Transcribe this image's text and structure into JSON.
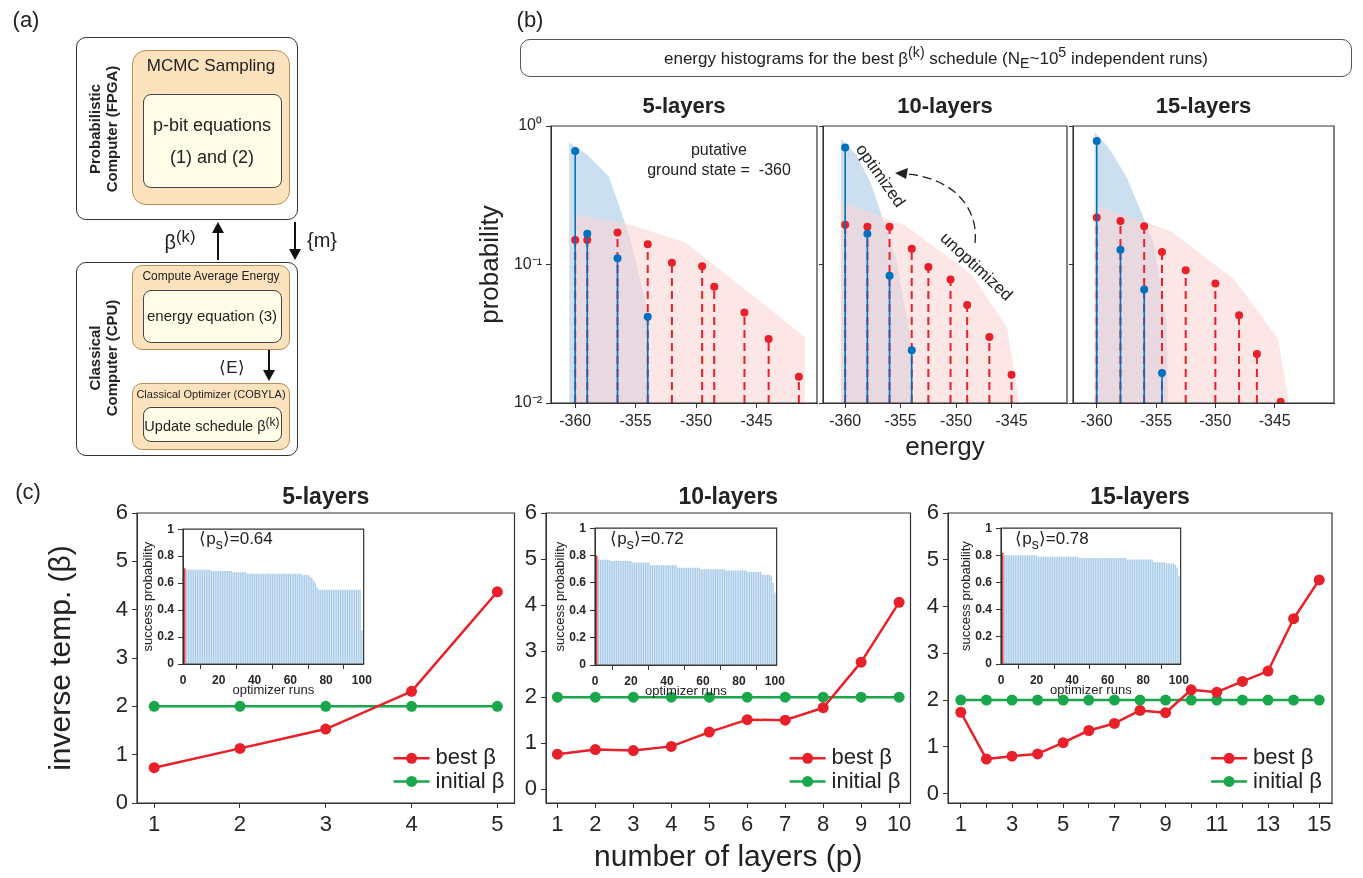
{
  "chart_data": [
    {
      "type": "other",
      "annotations": [
        "(a)",
        "Probabilistic\nComputer (FPGA)",
        "MCMC Sampling",
        "p-bit equations\n(1) and (2)",
        "β$^{(k)}$",
        "{m}",
        "Classical\nComputer (CPU)",
        "Compute Average Energy",
        "energy equation (3)",
        "⟨E⟩",
        "Classical Optimizer (COBYLA)",
        "Update schedule β$^{(k)}$"
      ]
    },
    {
      "type": "lollipop",
      "title": "5-layers",
      "ylabel": "probability",
      "annotations": [
        "(b)",
        "energy histograms for the best β$^{(k)}$ schedule (N$_{E}$~10$^{5}$ independent runs)",
        "putative\nground state =  -360"
      ],
      "log": true,
      "xlim": [
        -362,
        -340
      ],
      "xticks": [
        -360,
        -355,
        -350,
        -345
      ],
      "ylim": [
        0.01,
        1
      ],
      "yticks": [
        {
          "value": 1,
          "label": "10⁰"
        },
        {
          "value": 0.1,
          "label": "10⁻¹"
        },
        {
          "value": 0.01,
          "label": "10⁻²"
        }
      ],
      "series": [
        {
          "type": "area",
          "color": "#fbd5d5",
          "x": [
            -360.2,
            -356,
            -350.9,
            -346.3,
            -341,
            -341
          ],
          "values": [
            0.23,
            0.2,
            0.145,
            0.07,
            0.03,
            0.01
          ]
        },
        {
          "type": "area",
          "color": "#a9c9e8",
          "x": [
            -360.5,
            -359,
            -357.2,
            -355.5,
            -354.1,
            -353.8
          ],
          "values": [
            0.76,
            0.62,
            0.43,
            0.16,
            0.05,
            0.01
          ]
        },
        {
          "color": "#0072bd",
          "line_style": "solid",
          "marker": "circle",
          "x": [
            -360,
            -359,
            -356.5,
            -354
          ],
          "values": [
            0.66,
            0.167,
            0.111,
            0.042
          ]
        },
        {
          "color": "#e8202a",
          "line_style": "dashed",
          "marker": "circle",
          "x": [
            -360,
            -359,
            -356.5,
            -354,
            -352,
            -349.5,
            -348.5,
            -346,
            -344,
            -341.5
          ],
          "values": [
            0.15,
            0.15,
            0.17,
            0.14,
            0.103,
            0.097,
            0.069,
            0.045,
            0.029,
            0.0155
          ]
        }
      ]
    },
    {
      "type": "lollipop",
      "title": "10-layers",
      "xlabel": "energy",
      "annotations": [
        "optimized",
        "unoptimized"
      ],
      "log": true,
      "tick_labels": "x",
      "xlim": [
        -362,
        -340
      ],
      "xticks": [
        -360,
        -355,
        -350,
        -345
      ],
      "ylim": [
        0.01,
        1
      ],
      "yticks": [
        {
          "value": 1,
          "label": null
        },
        {
          "value": 0.1,
          "label": null
        },
        {
          "value": 0.01,
          "label": null
        }
      ],
      "series": [
        {
          "type": "area",
          "color": "#fbd5d5",
          "x": [
            -360.4,
            -354.5,
            -348.6,
            -345.4,
            -344.3
          ],
          "values": [
            0.285,
            0.19,
            0.085,
            0.035,
            0.01
          ]
        },
        {
          "type": "area",
          "color": "#a9c9e8",
          "x": [
            -360.4,
            -359,
            -357.7,
            -355.4,
            -354.1,
            -354
          ],
          "values": [
            0.81,
            0.62,
            0.39,
            0.11,
            0.029,
            0.01
          ]
        },
        {
          "color": "#0072bd",
          "line_style": "solid",
          "marker": "circle",
          "x": [
            -360,
            -358,
            -356,
            -354
          ],
          "values": [
            0.7,
            0.167,
            0.083,
            0.024
          ]
        },
        {
          "color": "#e8202a",
          "line_style": "dashed",
          "marker": "circle",
          "x": [
            -360,
            -358,
            -356,
            -354,
            -352.5,
            -350.5,
            -349,
            -347,
            -345
          ],
          "values": [
            0.194,
            0.187,
            0.187,
            0.13,
            0.096,
            0.078,
            0.051,
            0.03,
            0.016
          ]
        }
      ]
    },
    {
      "type": "lollipop",
      "title": "15-layers",
      "log": true,
      "tick_labels": "x",
      "xlim": [
        -362,
        -340
      ],
      "xticks": [
        -360,
        -355,
        -350,
        -345
      ],
      "ylim": [
        0.01,
        1
      ],
      "yticks": [
        {
          "value": 1,
          "label": null
        },
        {
          "value": 0.1,
          "label": null
        },
        {
          "value": 0.01,
          "label": null
        }
      ],
      "series": [
        {
          "type": "area",
          "color": "#fbd5d5",
          "x": [
            -360.2,
            -353.8,
            -348.4,
            -344.7,
            -343.8
          ],
          "values": [
            0.27,
            0.175,
            0.078,
            0.029,
            0.01
          ]
        },
        {
          "type": "area",
          "color": "#a9c9e8",
          "x": [
            -360.2,
            -359,
            -357.5,
            -355.2,
            -354.1,
            -354
          ],
          "values": [
            0.91,
            0.7,
            0.43,
            0.146,
            0.038,
            0.01
          ]
        },
        {
          "color": "#0072bd",
          "line_style": "solid",
          "marker": "circle",
          "x": [
            -360,
            -358,
            -356,
            -354.5
          ],
          "values": [
            0.78,
            0.128,
            0.066,
            0.0165
          ]
        },
        {
          "color": "#e8202a",
          "line_style": "dashed",
          "marker": "circle",
          "x": [
            -360,
            -358,
            -356,
            -354.5,
            -352.5,
            -350,
            -348,
            -346.5,
            -344.5
          ],
          "values": [
            0.218,
            0.206,
            0.189,
            0.123,
            0.091,
            0.073,
            0.043,
            0.0226,
            0.0102
          ]
        }
      ]
    },
    {
      "type": "line",
      "title": "5-layers",
      "ylabel": "inverse temp. (β)",
      "annotations": [
        "(c)"
      ],
      "marker": "circle",
      "legend": "bottom right",
      "x": [
        1,
        2,
        3,
        4,
        5
      ],
      "xlim": [
        0.8,
        5.2
      ],
      "xticks": [
        1,
        2,
        3,
        4,
        5
      ],
      "ylim": [
        0,
        6
      ],
      "yticks": [
        0,
        1,
        2,
        3,
        4,
        5,
        6
      ],
      "series": [
        {
          "name": "best β",
          "color": "#e8202a",
          "values": [
            0.73,
            1.13,
            1.53,
            2.31,
            4.37
          ]
        },
        {
          "name": "initial β",
          "color": "#1aa64a",
          "values": [
            2,
            2,
            2,
            2,
            2
          ]
        }
      ]
    },
    {
      "type": "bar",
      "xlabel": "optimizer runs",
      "ylabel": "success probability",
      "annotations": [
        "⟨p$_{s}$⟩=0.64"
      ],
      "xlim": [
        0,
        101
      ],
      "xticks": [
        0,
        20,
        40,
        60,
        80,
        100
      ],
      "ylim": [
        0,
        1
      ],
      "yticks": [
        0,
        0.2,
        0.4,
        0.6,
        0.8,
        1
      ],
      "series": [
        {
          "color": "#e8202a",
          "x": [
            1
          ],
          "values": [
            0.71
          ]
        },
        {
          "color": "#a7cbe9",
          "x": [
            2,
            3,
            4,
            5,
            6,
            7,
            8,
            9,
            10,
            11,
            12,
            13,
            14,
            15,
            16,
            17,
            18,
            19,
            20,
            21,
            22,
            23,
            24,
            25,
            26,
            27,
            28,
            29,
            30,
            31,
            32,
            33,
            34,
            35,
            36,
            37,
            38,
            39,
            40,
            41,
            42,
            43,
            44,
            45,
            46,
            47,
            48,
            49,
            50,
            51,
            52,
            53,
            54,
            55,
            56,
            57,
            58,
            59,
            60,
            61,
            62,
            63,
            64,
            65,
            66,
            67,
            68,
            69,
            70,
            71,
            72,
            73,
            74,
            75,
            76,
            77,
            78,
            79,
            80,
            81,
            82,
            83,
            84,
            85,
            86,
            87,
            88,
            89,
            90,
            91,
            92,
            93,
            94,
            95,
            96,
            97,
            98,
            99,
            100
          ],
          "values": [
            0.7,
            0.7,
            0.7,
            0.7,
            0.7,
            0.7,
            0.7,
            0.7,
            0.7,
            0.7,
            0.7,
            0.7,
            0.7,
            0.7,
            0.69,
            0.69,
            0.69,
            0.69,
            0.69,
            0.69,
            0.69,
            0.69,
            0.69,
            0.69,
            0.69,
            0.69,
            0.68,
            0.68,
            0.68,
            0.68,
            0.68,
            0.68,
            0.68,
            0.68,
            0.67,
            0.67,
            0.67,
            0.67,
            0.67,
            0.67,
            0.67,
            0.67,
            0.67,
            0.67,
            0.67,
            0.67,
            0.67,
            0.67,
            0.67,
            0.67,
            0.67,
            0.67,
            0.67,
            0.67,
            0.67,
            0.67,
            0.67,
            0.67,
            0.67,
            0.67,
            0.67,
            0.67,
            0.67,
            0.67,
            0.67,
            0.66,
            0.66,
            0.66,
            0.66,
            0.65,
            0.64,
            0.62,
            0.6,
            0.57,
            0.55,
            0.55,
            0.55,
            0.55,
            0.55,
            0.55,
            0.55,
            0.55,
            0.55,
            0.55,
            0.55,
            0.55,
            0.55,
            0.55,
            0.55,
            0.55,
            0.55,
            0.55,
            0.55,
            0.55,
            0.55,
            0.55,
            0.55,
            0.55,
            0.25
          ]
        }
      ]
    },
    {
      "type": "line",
      "title": "10-layers",
      "xlabel": "number of layers (p)",
      "marker": "circle",
      "legend": "bottom right",
      "x": [
        1,
        2,
        3,
        4,
        5,
        6,
        7,
        8,
        9,
        10
      ],
      "xlim": [
        0.7,
        10.3
      ],
      "xticks": [
        1,
        2,
        3,
        4,
        5,
        6,
        7,
        8,
        9,
        10
      ],
      "ylim": [
        -0.3,
        6
      ],
      "yticks": [
        0,
        1,
        2,
        3,
        4,
        5,
        6
      ],
      "series": [
        {
          "name": "best β",
          "color": "#e8202a",
          "values": [
            0.76,
            0.86,
            0.84,
            0.93,
            1.24,
            1.51,
            1.5,
            1.77,
            2.76,
            4.06
          ]
        },
        {
          "name": "initial β",
          "color": "#1aa64a",
          "values": [
            2,
            2,
            2,
            2,
            2,
            2,
            2,
            2,
            2,
            2
          ]
        }
      ]
    },
    {
      "type": "bar",
      "xlabel": "optimizer runs",
      "ylabel": "success probability",
      "annotations": [
        "⟨p$_{s}$⟩=0.72"
      ],
      "xlim": [
        0,
        101
      ],
      "xticks": [
        0,
        20,
        40,
        60,
        80,
        100
      ],
      "ylim": [
        0,
        1
      ],
      "yticks": [
        0,
        0.2,
        0.4,
        0.6,
        0.8,
        1
      ],
      "series": [
        {
          "color": "#e8202a",
          "x": [
            1
          ],
          "values": [
            0.8
          ]
        },
        {
          "color": "#a7cbe9",
          "x": [
            2,
            3,
            4,
            5,
            6,
            7,
            8,
            9,
            10,
            11,
            12,
            13,
            14,
            15,
            16,
            17,
            18,
            19,
            20,
            21,
            22,
            23,
            24,
            25,
            26,
            27,
            28,
            29,
            30,
            31,
            32,
            33,
            34,
            35,
            36,
            37,
            38,
            39,
            40,
            41,
            42,
            43,
            44,
            45,
            46,
            47,
            48,
            49,
            50,
            51,
            52,
            53,
            54,
            55,
            56,
            57,
            58,
            59,
            60,
            61,
            62,
            63,
            64,
            65,
            66,
            67,
            68,
            69,
            70,
            71,
            72,
            73,
            74,
            75,
            76,
            77,
            78,
            79,
            80,
            81,
            82,
            83,
            84,
            85,
            86,
            87,
            88,
            89,
            90,
            91,
            92,
            93,
            94,
            95,
            96,
            97,
            98,
            99,
            100
          ],
          "values": [
            0.77,
            0.77,
            0.77,
            0.77,
            0.77,
            0.77,
            0.77,
            0.76,
            0.76,
            0.76,
            0.76,
            0.76,
            0.76,
            0.76,
            0.76,
            0.76,
            0.76,
            0.76,
            0.76,
            0.75,
            0.75,
            0.75,
            0.75,
            0.75,
            0.75,
            0.75,
            0.75,
            0.75,
            0.75,
            0.73,
            0.73,
            0.73,
            0.73,
            0.73,
            0.73,
            0.73,
            0.73,
            0.73,
            0.73,
            0.73,
            0.73,
            0.73,
            0.73,
            0.73,
            0.71,
            0.71,
            0.71,
            0.71,
            0.71,
            0.71,
            0.71,
            0.71,
            0.71,
            0.71,
            0.71,
            0.71,
            0.71,
            0.7,
            0.7,
            0.7,
            0.7,
            0.7,
            0.7,
            0.7,
            0.7,
            0.7,
            0.7,
            0.7,
            0.7,
            0.7,
            0.7,
            0.69,
            0.69,
            0.69,
            0.69,
            0.69,
            0.69,
            0.69,
            0.69,
            0.69,
            0.69,
            0.69,
            0.69,
            0.68,
            0.68,
            0.68,
            0.68,
            0.68,
            0.68,
            0.68,
            0.68,
            0.66,
            0.66,
            0.66,
            0.66,
            0.66,
            0.65,
            0.6,
            0.53
          ]
        }
      ]
    },
    {
      "type": "line",
      "title": "15-layers",
      "marker": "circle",
      "legend": "bottom right",
      "x": [
        1,
        2,
        3,
        4,
        5,
        6,
        7,
        8,
        9,
        10,
        11,
        12,
        13,
        14,
        15
      ],
      "xlim": [
        0.5,
        15.5
      ],
      "xticks": [
        1,
        {
          "value": 2,
          "label": null
        },
        3,
        {
          "value": 4,
          "label": null
        },
        5,
        {
          "value": 6,
          "label": null
        },
        7,
        {
          "value": 8,
          "label": null
        },
        9,
        {
          "value": 10,
          "label": null
        },
        11,
        {
          "value": 12,
          "label": null
        },
        13,
        {
          "value": 14,
          "label": null
        },
        15
      ],
      "ylim": [
        -0.2,
        6
      ],
      "yticks": [
        0,
        1,
        2,
        3,
        4,
        5,
        6
      ],
      "series": [
        {
          "name": "best β",
          "color": "#e8202a",
          "values": [
            1.74,
            0.74,
            0.8,
            0.85,
            1.09,
            1.35,
            1.5,
            1.78,
            1.73,
            2.22,
            2.17,
            2.4,
            2.62,
            3.74,
            4.57
          ]
        },
        {
          "name": "initial β",
          "color": "#1aa64a",
          "values": [
            2,
            2,
            2,
            2,
            2,
            2,
            2,
            2,
            2,
            2,
            2,
            2,
            2,
            2,
            2
          ]
        }
      ]
    },
    {
      "type": "bar",
      "xlabel": "optimizer runs",
      "ylabel": "success probability",
      "annotations": [
        "⟨p$_{s}$⟩=0.78"
      ],
      "xlim": [
        0,
        101
      ],
      "xticks": [
        0,
        20,
        40,
        60,
        80,
        100
      ],
      "ylim": [
        0,
        1
      ],
      "yticks": [
        0,
        0.2,
        0.4,
        0.6,
        0.8,
        1
      ],
      "series": [
        {
          "color": "#e8202a",
          "x": [
            1
          ],
          "values": [
            0.82
          ]
        },
        {
          "color": "#a7cbe9",
          "x": [
            2,
            3,
            4,
            5,
            6,
            7,
            8,
            9,
            10,
            11,
            12,
            13,
            14,
            15,
            16,
            17,
            18,
            19,
            20,
            21,
            22,
            23,
            24,
            25,
            26,
            27,
            28,
            29,
            30,
            31,
            32,
            33,
            34,
            35,
            36,
            37,
            38,
            39,
            40,
            41,
            42,
            43,
            44,
            45,
            46,
            47,
            48,
            49,
            50,
            51,
            52,
            53,
            54,
            55,
            56,
            57,
            58,
            59,
            60,
            61,
            62,
            63,
            64,
            65,
            66,
            67,
            68,
            69,
            70,
            71,
            72,
            73,
            74,
            75,
            76,
            77,
            78,
            79,
            80,
            81,
            82,
            83,
            84,
            85,
            86,
            87,
            88,
            89,
            90,
            91,
            92,
            93,
            94,
            95,
            96,
            97,
            98,
            99,
            100
          ],
          "values": [
            0.8,
            0.8,
            0.8,
            0.8,
            0.8,
            0.8,
            0.8,
            0.8,
            0.8,
            0.8,
            0.8,
            0.8,
            0.8,
            0.8,
            0.8,
            0.8,
            0.8,
            0.8,
            0.8,
            0.79,
            0.79,
            0.79,
            0.79,
            0.79,
            0.79,
            0.79,
            0.79,
            0.79,
            0.79,
            0.79,
            0.79,
            0.79,
            0.79,
            0.79,
            0.79,
            0.79,
            0.79,
            0.79,
            0.79,
            0.79,
            0.79,
            0.79,
            0.78,
            0.78,
            0.78,
            0.78,
            0.78,
            0.78,
            0.78,
            0.78,
            0.78,
            0.78,
            0.78,
            0.78,
            0.78,
            0.78,
            0.78,
            0.78,
            0.78,
            0.78,
            0.78,
            0.78,
            0.78,
            0.78,
            0.78,
            0.78,
            0.78,
            0.78,
            0.78,
            0.77,
            0.77,
            0.77,
            0.77,
            0.77,
            0.77,
            0.77,
            0.77,
            0.77,
            0.77,
            0.77,
            0.77,
            0.77,
            0.77,
            0.77,
            0.75,
            0.75,
            0.75,
            0.75,
            0.75,
            0.75,
            0.75,
            0.74,
            0.74,
            0.74,
            0.74,
            0.74,
            0.73,
            0.71,
            0.65
          ]
        }
      ]
    }
  ]
}
